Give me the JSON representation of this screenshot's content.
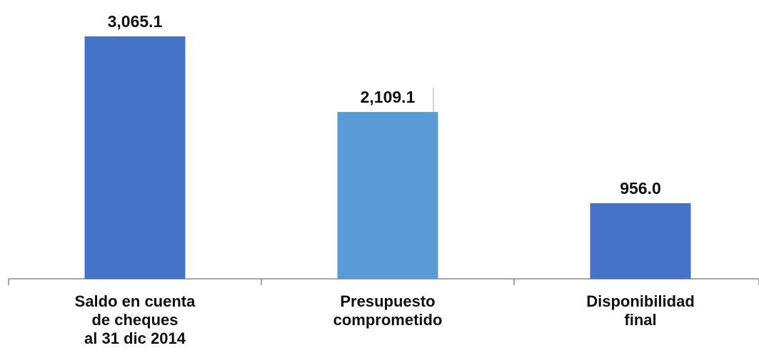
{
  "chart_data": {
    "type": "bar",
    "categories": [
      [
        "Saldo en cuenta",
        "de cheques",
        "al 31 dic 2014"
      ],
      [
        "Presupuesto",
        "comprometido"
      ],
      [
        "Disponibilidad",
        "final"
      ]
    ],
    "values": [
      3065.1,
      2109.1,
      956.0
    ],
    "value_labels": [
      "3,065.1",
      "2,109.1",
      "956.0"
    ],
    "colors": [
      "#4472C4",
      "#5B9BD5",
      "#4472C4"
    ],
    "title": "",
    "xlabel": "",
    "ylabel": "",
    "ylim": [
      0,
      3065.1
    ],
    "grid": false,
    "legend": "none"
  }
}
